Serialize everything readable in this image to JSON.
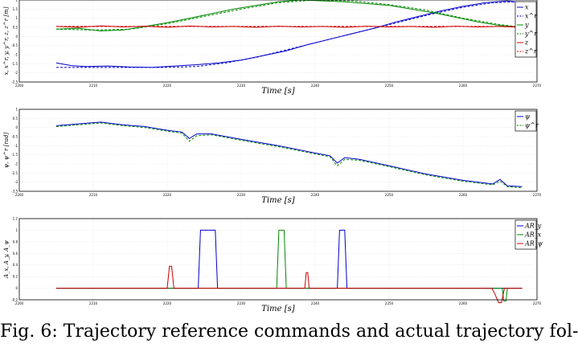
{
  "caption": "Fig. 6: Trajectory reference commands and actual trajectory fol-",
  "chart_data": [
    {
      "type": "line",
      "xlabel": "Time [s]",
      "ylabel": "x, x^r, y, y^r, z, z^r [m]",
      "xlim": [
        2200,
        2270
      ],
      "ylim": [
        -2.5,
        2.0
      ],
      "xticks": [
        2200,
        2210,
        2220,
        2230,
        2240,
        2250,
        2260,
        2270
      ],
      "yticks": [
        -2.5,
        -2,
        -1.5,
        -1,
        -0.5,
        0,
        0.5,
        1,
        1.5,
        2
      ],
      "grid": true,
      "legend_position": "right",
      "series": [
        {
          "name": "x",
          "color": "#0000cc",
          "dash": false,
          "x": [
            2205,
            2207,
            2209,
            2212,
            2215,
            2218,
            2221,
            2224,
            2227,
            2230,
            2233,
            2236,
            2239,
            2242,
            2245,
            2248,
            2251,
            2254,
            2257,
            2260,
            2263,
            2266,
            2268
          ],
          "y": [
            -1.45,
            -1.6,
            -1.65,
            -1.62,
            -1.68,
            -1.7,
            -1.62,
            -1.55,
            -1.45,
            -1.3,
            -1.05,
            -0.8,
            -0.45,
            -0.15,
            0.15,
            0.45,
            0.8,
            1.1,
            1.4,
            1.65,
            1.85,
            1.95,
            1.85
          ]
        },
        {
          "name": "x^r",
          "color": "#0000cc",
          "dash": true,
          "x": [
            2205,
            2208,
            2212,
            2216,
            2220,
            2224,
            2228,
            2232,
            2236,
            2240,
            2244,
            2248,
            2252,
            2256,
            2260,
            2264,
            2267
          ],
          "y": [
            -1.7,
            -1.7,
            -1.7,
            -1.7,
            -1.7,
            -1.65,
            -1.45,
            -1.15,
            -0.75,
            -0.35,
            0.05,
            0.45,
            0.85,
            1.25,
            1.6,
            1.85,
            1.9
          ]
        },
        {
          "name": "y",
          "color": "#008800",
          "dash": false,
          "x": [
            2205,
            2208,
            2211,
            2214,
            2217,
            2220,
            2223,
            2226,
            2229,
            2232,
            2235,
            2238,
            2241,
            2244,
            2247,
            2250,
            2253,
            2256,
            2259,
            2262,
            2265,
            2268
          ],
          "y": [
            0.4,
            0.45,
            0.3,
            0.35,
            0.55,
            0.75,
            1.0,
            1.25,
            1.5,
            1.7,
            1.9,
            2.0,
            1.95,
            1.9,
            1.8,
            1.7,
            1.5,
            1.3,
            1.05,
            0.8,
            0.6,
            0.5
          ]
        },
        {
          "name": "y^r",
          "color": "#008800",
          "dash": true,
          "x": [
            2205,
            2210,
            2215,
            2220,
            2225,
            2230,
            2235,
            2240,
            2245,
            2250,
            2255,
            2260,
            2265,
            2268
          ],
          "y": [
            0.4,
            0.35,
            0.4,
            0.7,
            1.1,
            1.5,
            1.85,
            2.0,
            1.95,
            1.75,
            1.45,
            1.0,
            0.65,
            0.5
          ]
        },
        {
          "name": "z",
          "color": "#cc0000",
          "dash": false,
          "x": [
            2205,
            2208,
            2211,
            2214,
            2217,
            2220,
            2223,
            2226,
            2229,
            2232,
            2235,
            2238,
            2241,
            2244,
            2247,
            2250,
            2253,
            2256,
            2259,
            2262,
            2265,
            2268
          ],
          "y": [
            0.55,
            0.5,
            0.58,
            0.52,
            0.56,
            0.5,
            0.57,
            0.52,
            0.55,
            0.5,
            0.56,
            0.52,
            0.55,
            0.5,
            0.56,
            0.52,
            0.55,
            0.5,
            0.56,
            0.52,
            0.55,
            0.5
          ]
        },
        {
          "name": "z^r",
          "color": "#cc0000",
          "dash": true,
          "x": [
            2205,
            2268
          ],
          "y": [
            0.55,
            0.55
          ]
        }
      ]
    },
    {
      "type": "line",
      "xlabel": "Time [s]",
      "ylabel": "ψ, ψ^r [rad]",
      "xlim": [
        2200,
        2270
      ],
      "ylim": [
        -3.5,
        1.0
      ],
      "xticks": [
        2200,
        2210,
        2220,
        2230,
        2240,
        2250,
        2260,
        2270
      ],
      "yticks": [
        -3.5,
        -3,
        -2.5,
        -2,
        -1.5,
        -1,
        -0.5,
        0,
        0.5,
        1
      ],
      "grid": true,
      "legend_position": "top-right",
      "series": [
        {
          "name": "ψ",
          "color": "#0000cc",
          "dash": false,
          "x": [
            2205,
            2208,
            2211,
            2214,
            2217,
            2220,
            2222,
            2223,
            2224,
            2226,
            2230,
            2235,
            2240,
            2242,
            2243,
            2244,
            2246,
            2250,
            2255,
            2260,
            2264,
            2265,
            2266,
            2268
          ],
          "y": [
            0.1,
            0.2,
            0.3,
            0.15,
            0.05,
            -0.15,
            -0.25,
            -0.6,
            -0.35,
            -0.35,
            -0.65,
            -1.0,
            -1.4,
            -1.55,
            -1.95,
            -1.65,
            -1.75,
            -2.1,
            -2.55,
            -2.9,
            -3.1,
            -2.85,
            -3.2,
            -3.25
          ]
        },
        {
          "name": "ψ^r",
          "color": "#008800",
          "dash": true,
          "x": [
            2205,
            2208,
            2211,
            2214,
            2217,
            2220,
            2222,
            2223,
            2224,
            2226,
            2230,
            2235,
            2240,
            2242,
            2243,
            2244,
            2246,
            2250,
            2255,
            2260,
            2264,
            2265,
            2266,
            2268
          ],
          "y": [
            0.05,
            0.15,
            0.25,
            0.1,
            0.0,
            -0.2,
            -0.3,
            -0.75,
            -0.45,
            -0.4,
            -0.7,
            -1.05,
            -1.45,
            -1.6,
            -2.1,
            -1.75,
            -1.8,
            -2.15,
            -2.6,
            -2.95,
            -3.15,
            -2.95,
            -3.25,
            -3.3
          ]
        }
      ]
    },
    {
      "type": "line",
      "xlabel": "Time [s]",
      "ylabel": "A_x, A_y, A_ψ",
      "xlim": [
        2200,
        2270
      ],
      "ylim": [
        -0.2,
        1.2
      ],
      "xticks": [
        2200,
        2210,
        2220,
        2230,
        2240,
        2250,
        2260,
        2270
      ],
      "yticks": [
        -0.2,
        0,
        0.2,
        0.4,
        0.6,
        0.8,
        1,
        1.2
      ],
      "grid": true,
      "legend_position": "top-right",
      "series": [
        {
          "name": "AR_y",
          "color": "#0000cc",
          "dash": false,
          "x": [
            2205,
            2224.2,
            2224.5,
            2226.5,
            2226.8,
            2243.0,
            2243.3,
            2244.0,
            2244.3,
            2268
          ],
          "y": [
            0,
            0,
            1,
            1,
            0,
            0,
            1,
            1,
            0,
            0
          ]
        },
        {
          "name": "AR_x",
          "color": "#008800",
          "dash": false,
          "x": [
            2205,
            2234.8,
            2235.1,
            2235.8,
            2236.1,
            2265.3,
            2265.5,
            2265.8,
            2266.0,
            2268
          ],
          "y": [
            0,
            0,
            1,
            1,
            0,
            0,
            -0.22,
            -0.22,
            0,
            0
          ]
        },
        {
          "name": "AR_ψ",
          "color": "#cc0000",
          "dash": false,
          "x": [
            2205,
            2220.0,
            2220.3,
            2220.6,
            2220.9,
            2238.6,
            2238.8,
            2239.0,
            2239.2,
            2263.9,
            2264.3,
            2264.8,
            2265.2,
            2265.6,
            2268
          ],
          "y": [
            0,
            0,
            0.38,
            0.38,
            0,
            0,
            0.27,
            0.27,
            0,
            0,
            -0.1,
            -0.25,
            -0.25,
            0,
            0
          ]
        }
      ]
    }
  ]
}
